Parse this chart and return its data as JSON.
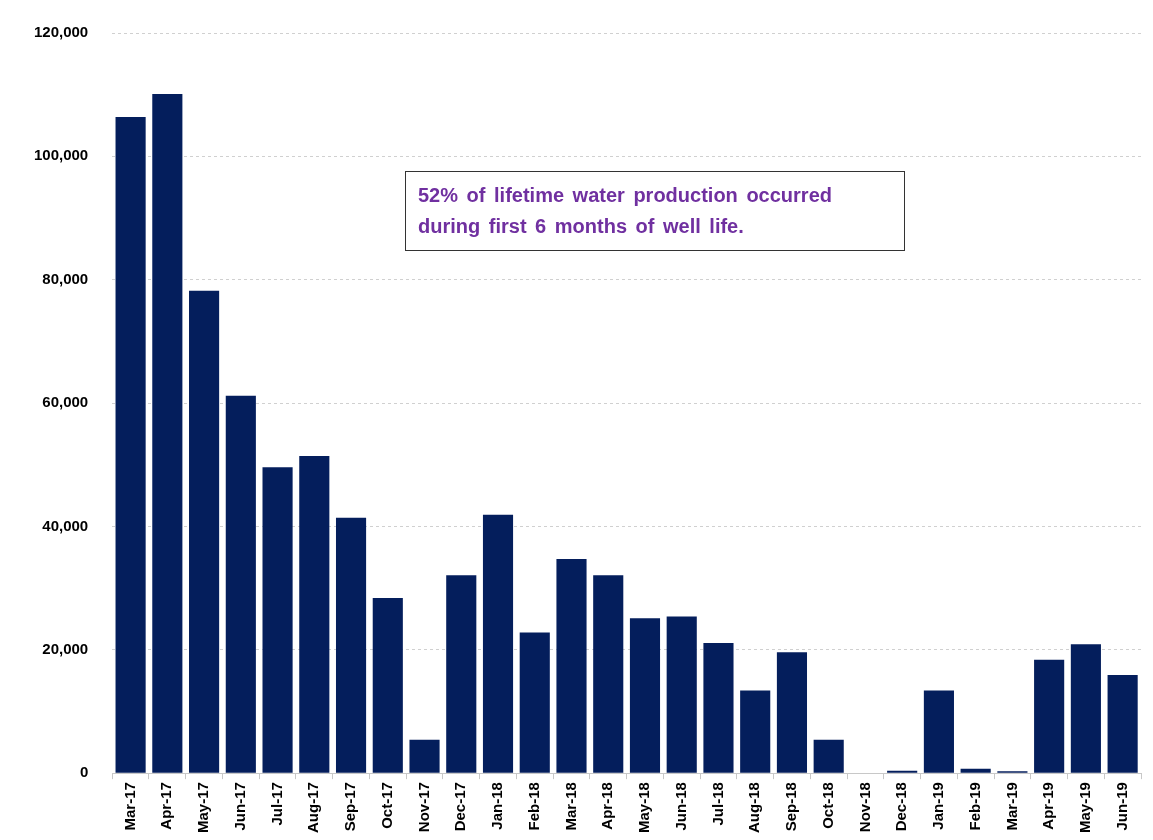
{
  "chart_data": {
    "type": "bar",
    "categories": [
      "Mar-17",
      "Apr-17",
      "May-17",
      "Jun-17",
      "Jul-17",
      "Aug-17",
      "Sep-17",
      "Oct-17",
      "Nov-17",
      "Dec-17",
      "Jan-18",
      "Feb-18",
      "Mar-18",
      "Apr-18",
      "May-18",
      "Jun-18",
      "Jul-18",
      "Aug-18",
      "Sep-18",
      "Oct-18",
      "Nov-18",
      "Dec-18",
      "Jan-19",
      "Feb-19",
      "Mar-19",
      "Apr-19",
      "May-19",
      "Jun-19"
    ],
    "values": [
      106400,
      110100,
      78200,
      61200,
      49600,
      51400,
      41400,
      28400,
      5400,
      32100,
      41900,
      22800,
      34700,
      32100,
      25100,
      25400,
      21100,
      13400,
      19600,
      5400,
      0,
      400,
      13400,
      700,
      300,
      18400,
      20900,
      15900
    ],
    "color": "#041e5c",
    "ylim": [
      0,
      120000
    ],
    "yticks": [
      0,
      {
        "value": 20000,
        "label": "20,000"
      },
      {
        "value": 40000,
        "label": "40,000"
      },
      {
        "value": 60000,
        "label": "60,000"
      },
      {
        "value": 80000,
        "label": "80,000"
      },
      {
        "value": 100000,
        "label": "100,000"
      },
      {
        "value": 120000,
        "label": "120,000"
      }
    ],
    "grid": "y",
    "annotations": [
      "52% of lifetime water production occurred during first 6 months of well life."
    ]
  }
}
